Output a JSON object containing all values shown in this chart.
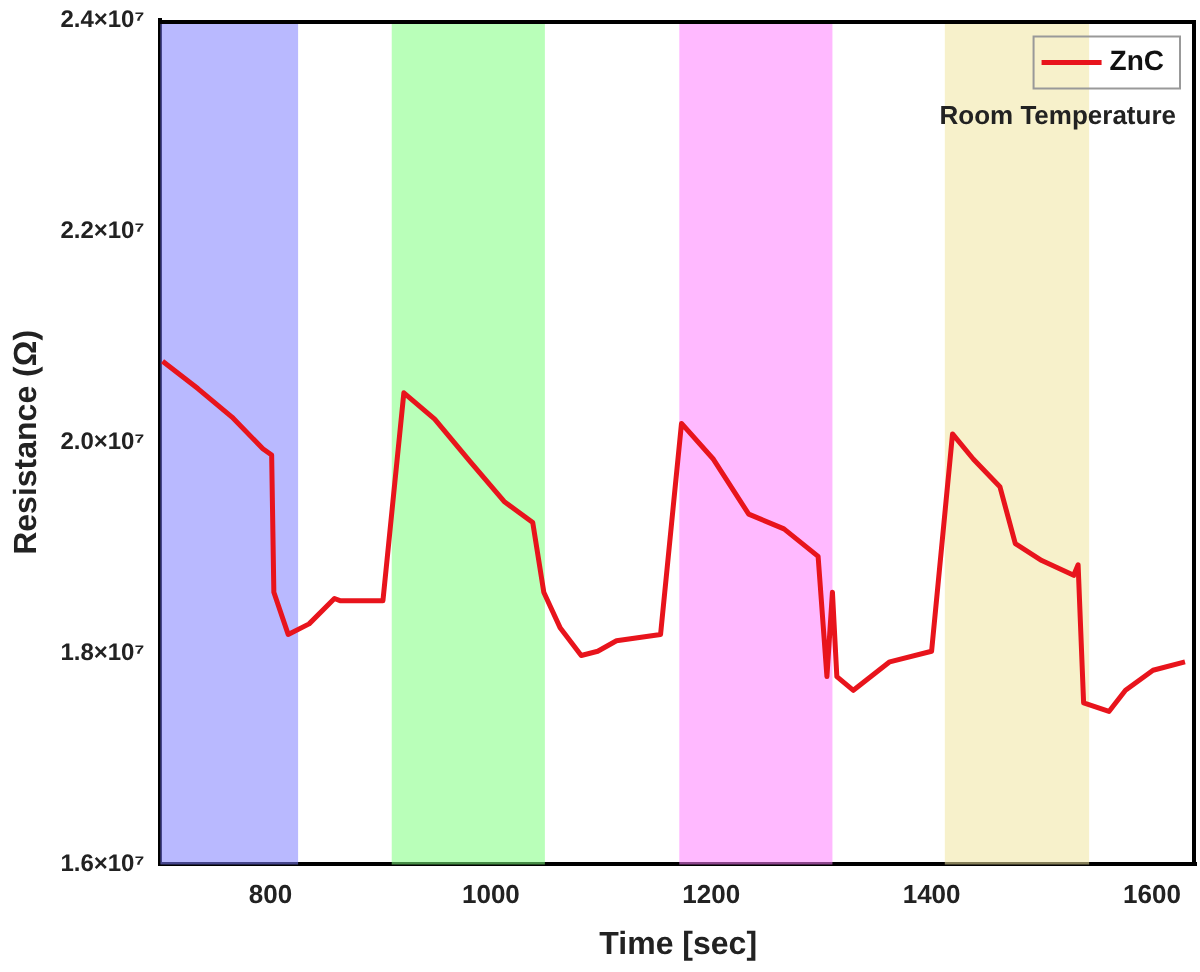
{
  "chart_data": {
    "type": "line",
    "xlabel": "Time [sec]",
    "ylabel": "Resistance (Ω)",
    "annotations": [
      "Room Temperature"
    ],
    "xlim": [
      700,
      1640
    ],
    "xticks": [
      800,
      1000,
      1200,
      1400,
      1600
    ],
    "ylim": [
      16000000,
      24000000
    ],
    "yticks": [
      {
        "value": 16000000,
        "label": "1.6×10⁷"
      },
      {
        "value": 18000000,
        "label": "1.8×10⁷"
      },
      {
        "value": 20000000,
        "label": "2.0×10⁷"
      },
      {
        "value": 22000000,
        "label": "2.2×10⁷"
      },
      {
        "value": 24000000,
        "label": "2.4×10⁷"
      }
    ],
    "x": [
      702,
      734,
      765,
      793,
      801,
      803,
      816,
      835,
      858,
      863,
      902,
      921,
      949,
      981,
      1012,
      1038,
      1048,
      1063,
      1082,
      1097,
      1114,
      1154,
      1173,
      1202,
      1234,
      1266,
      1297,
      1305,
      1310,
      1314,
      1329,
      1362,
      1400,
      1419,
      1438,
      1462,
      1476,
      1500,
      1529,
      1533,
      1538,
      1561,
      1576,
      1601,
      1630
    ],
    "series": [
      {
        "name": "ZnC",
        "color": "#e8141c",
        "values": [
          20770000,
          20510000,
          20240000,
          19940000,
          19880000,
          18580000,
          18180000,
          18280000,
          18520000,
          18500000,
          18500000,
          20470000,
          20220000,
          19820000,
          19440000,
          19240000,
          18580000,
          18240000,
          17980000,
          18020000,
          18120000,
          18180000,
          20180000,
          19840000,
          19320000,
          19180000,
          18920000,
          17780000,
          18580000,
          17780000,
          17650000,
          17920000,
          18020000,
          20080000,
          19840000,
          19580000,
          19040000,
          18880000,
          18740000,
          18840000,
          17530000,
          17450000,
          17650000,
          17840000,
          17920000
        ]
      }
    ],
    "bands": [
      {
        "axis": "x",
        "from": 700,
        "to": 825,
        "color": "#8080ff"
      },
      {
        "axis": "x",
        "from": 910,
        "to": 1049,
        "color": "#80ff80"
      },
      {
        "axis": "x",
        "from": 1171,
        "to": 1310,
        "color": "#ff80ff"
      },
      {
        "axis": "x",
        "from": 1412,
        "to": 1543,
        "color": "#f0e6a0"
      }
    ],
    "legend": "top right",
    "grid": false,
    "line_style": "solid",
    "marker": "none"
  }
}
